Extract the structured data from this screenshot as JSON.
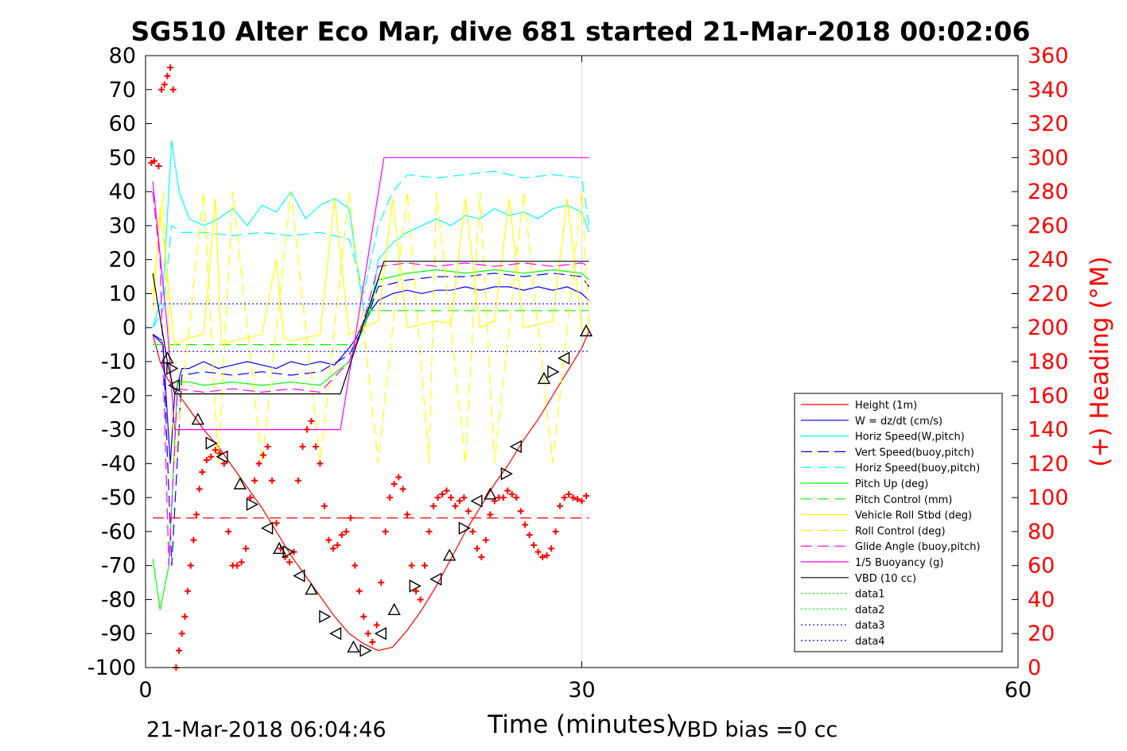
{
  "chart_data": {
    "type": "line",
    "title": "SG510 Alter Eco Mar, dive 681 started 21-Mar-2018 00:02:06",
    "xlabel": "Time (minutes)",
    "ylabel": "",
    "y2label": "(+) Heading (°M)",
    "xlim": [
      0,
      60
    ],
    "ylim": [
      -100,
      80
    ],
    "y2lim": [
      0,
      360
    ],
    "xticks": [
      "0",
      "30",
      "60"
    ],
    "yticks": [
      "80",
      "70",
      "60",
      "50",
      "40",
      "30",
      "20",
      "10",
      "0",
      "-10",
      "-20",
      "-30",
      "-40",
      "-50",
      "-60",
      "-70",
      "-80",
      "-90",
      "-100"
    ],
    "y2ticks": [
      "360",
      "340",
      "320",
      "300",
      "280",
      "260",
      "240",
      "220",
      "200",
      "180",
      "160",
      "140",
      "120",
      "100",
      "80",
      "60",
      "40",
      "20",
      "0"
    ],
    "grid": "vertical-minor",
    "legend_position": "lower-right",
    "colors": {
      "red": "#ff0000",
      "blue": "#0000ff",
      "cyan": "#00ffff",
      "green": "#00ff00",
      "yellow": "#ffff00",
      "magenta": "#ff00ff",
      "black": "#000000",
      "navy": "#00008b"
    },
    "series": [
      {
        "name": "Height (1m)",
        "color": "#ff0000",
        "style": "solid",
        "x": [
          0.5,
          1.0,
          1.5,
          2.0,
          3,
          4,
          5,
          6,
          7,
          8,
          9,
          10,
          11,
          12,
          13,
          14,
          15,
          16,
          17,
          18,
          19,
          20,
          21,
          22,
          23,
          24,
          25,
          26,
          27,
          28,
          29,
          30,
          30.5
        ],
        "y": [
          -2,
          -10,
          -15,
          -18,
          -24,
          -30,
          -35,
          -41,
          -47,
          -53,
          -60,
          -67,
          -73,
          -79,
          -85,
          -90,
          -93,
          -95,
          -94,
          -89,
          -83,
          -76,
          -68,
          -60,
          -53,
          -46,
          -40,
          -33,
          -27,
          -20,
          -13,
          -6,
          -1
        ]
      },
      {
        "name": "W = dz/dt (cm/s)",
        "color": "#0000ff",
        "style": "solid",
        "x": [
          0.5,
          1.2,
          1.7,
          2.0,
          2.5,
          3,
          4,
          5,
          6,
          7,
          8,
          9,
          10,
          11,
          12,
          13,
          14,
          14.5,
          15,
          16,
          17,
          18,
          19,
          20,
          21,
          22,
          23,
          24,
          25,
          26,
          27,
          28,
          29,
          30,
          30.5
        ],
        "y": [
          -2,
          -5,
          -40,
          -20,
          -12,
          -12,
          -10,
          -12,
          -11,
          -10,
          -11,
          -12,
          -10,
          -11,
          -10,
          -11,
          -6,
          -3,
          2,
          8,
          10,
          11,
          10,
          11,
          11,
          12,
          11,
          12,
          12,
          11,
          12,
          11,
          12,
          10,
          8
        ]
      },
      {
        "name": "Horiz Speed(W,pitch)",
        "color": "#00ffff",
        "style": "solid",
        "x": [
          0.5,
          1.2,
          1.8,
          2.3,
          3,
          4,
          5,
          6,
          7,
          8,
          9,
          10,
          11,
          12,
          13,
          14,
          14.5,
          15,
          15.5,
          16,
          17,
          18,
          19,
          20,
          21,
          22,
          23,
          24,
          25,
          26,
          27,
          28,
          29,
          30,
          30.5
        ],
        "y": [
          0,
          10,
          55,
          40,
          32,
          30,
          32,
          35,
          30,
          36,
          34,
          40,
          32,
          36,
          38,
          35,
          20,
          5,
          5,
          20,
          25,
          28,
          30,
          32,
          30,
          33,
          32,
          35,
          33,
          34,
          32,
          35,
          36,
          34,
          28
        ]
      },
      {
        "name": "Vert Speed(buoy,pitch)",
        "color": "#0000ff",
        "style": "dashed",
        "x": [
          0.5,
          1.2,
          1.8,
          2.5,
          4,
          6,
          8,
          10,
          12,
          14,
          15,
          16,
          18,
          20,
          22,
          24,
          26,
          28,
          30,
          30.5
        ],
        "y": [
          -2,
          -4,
          -70,
          -14,
          -13,
          -14,
          -13,
          -14,
          -13,
          -8,
          0,
          12,
          14,
          15,
          15,
          16,
          15,
          16,
          15,
          12
        ]
      },
      {
        "name": "Horiz Speed(buoy,pitch)",
        "color": "#00ffff",
        "style": "dashed",
        "x": [
          0.5,
          1.2,
          1.8,
          2.5,
          4,
          6,
          8,
          10,
          12,
          14,
          15,
          16,
          17,
          18,
          20,
          22,
          24,
          26,
          28,
          30,
          30.5
        ],
        "y": [
          0,
          5,
          30,
          28,
          28,
          27,
          28,
          27,
          28,
          26,
          10,
          30,
          40,
          45,
          44,
          45,
          46,
          44,
          45,
          44,
          30
        ]
      },
      {
        "name": "Pitch Up (deg)",
        "color": "#00ff00",
        "style": "solid",
        "x": [
          0.5,
          1.0,
          1.6,
          2.2,
          3,
          4,
          6,
          8,
          10,
          12,
          14,
          15,
          16,
          18,
          20,
          22,
          24,
          26,
          28,
          30,
          30.5
        ],
        "y": [
          -68,
          -83,
          -70,
          -16,
          -16,
          -17,
          -16,
          -17,
          -16,
          -17,
          -10,
          0,
          14,
          16,
          17,
          16,
          17,
          16,
          17,
          16,
          14
        ]
      },
      {
        "name": "Pitch Control (mm)",
        "color": "#00ff00",
        "style": "dashed",
        "x": [
          0.5,
          2.0,
          14.5,
          15.5,
          30.5
        ],
        "y": [
          -5,
          -5,
          -5,
          5,
          5
        ]
      },
      {
        "name": "Vehicle Roll Stbd (deg)",
        "color": "#ffff00",
        "style": "solid",
        "x": [
          0.5,
          1.0,
          2.0,
          3,
          4,
          4.8,
          5.2,
          6,
          8,
          9.0,
          9.5,
          10,
          12,
          13,
          14,
          15,
          16,
          17,
          18,
          19,
          20,
          21,
          22,
          23,
          24,
          25,
          26,
          27,
          28,
          29,
          30,
          30.5
        ],
        "y": [
          5,
          35,
          -5,
          -3,
          -2,
          38,
          -5,
          -4,
          -2,
          20,
          -3,
          -4,
          -2,
          38,
          -2,
          0,
          2,
          38,
          0,
          1,
          2,
          1,
          38,
          0,
          2,
          38,
          0,
          1,
          2,
          38,
          0,
          -1
        ]
      },
      {
        "name": "Roll Control (deg)",
        "color": "#ffff00",
        "style": "dashed",
        "x": [
          0.5,
          1.2,
          2.0,
          4,
          5,
          6,
          8,
          10,
          12,
          14,
          16,
          18,
          19.5,
          20,
          22,
          23,
          24,
          26,
          28,
          30,
          30.5
        ],
        "y": [
          10,
          40,
          -40,
          40,
          -40,
          40,
          -40,
          40,
          -40,
          40,
          -40,
          40,
          -40,
          40,
          -40,
          40,
          -40,
          40,
          -40,
          40,
          0
        ]
      },
      {
        "name": "Glide Angle (buoy,pitch)",
        "color": "#ff00ff",
        "style": "dashed",
        "x": [
          0.5,
          1.0,
          1.6,
          2.2,
          4,
          6,
          8,
          10,
          12,
          14,
          15,
          16,
          18,
          20,
          22,
          24,
          26,
          28,
          30,
          30.5
        ],
        "y": [
          40,
          20,
          -70,
          -18,
          -19,
          -18,
          -19,
          -18,
          -19,
          -10,
          2,
          18,
          19,
          18,
          19,
          18,
          19,
          18,
          19,
          18
        ]
      },
      {
        "name": "1/5 Buoyancy (g)",
        "color": "#ff00ff",
        "style": "solid",
        "x": [
          0.5,
          1.5,
          2.0,
          13.4,
          16.4,
          30.5
        ],
        "y": [
          43,
          0,
          -30,
          -30,
          50,
          50
        ]
      },
      {
        "name": "VBD (10 cc)",
        "color": "#000000",
        "style": "solid",
        "x": [
          0.5,
          1.5,
          2.0,
          13.4,
          16.4,
          30.5
        ],
        "y": [
          16,
          -10,
          -19.5,
          -19.5,
          19.5,
          19.5
        ]
      },
      {
        "name": "data1",
        "color": "#00ff00",
        "style": "dotted",
        "x": [],
        "y": []
      },
      {
        "name": "data2",
        "color": "#00ff00",
        "style": "dotted",
        "x": [],
        "y": []
      },
      {
        "name": "data3",
        "color": "#0000ff",
        "style": "dotted",
        "x": [
          0.5,
          30.5
        ],
        "y": [
          7,
          7
        ]
      },
      {
        "name": "data4",
        "color": "#0000ff",
        "style": "dotted",
        "x": [
          0.5,
          30.5
        ],
        "y": [
          -7,
          -7
        ]
      }
    ],
    "heading_points": {
      "x": [
        0.4,
        0.6,
        0.9,
        1.1,
        1.3,
        1.5,
        1.7,
        1.9,
        2.1,
        2.3,
        2.5,
        2.7,
        2.9,
        3.1,
        3.3,
        3.5,
        3.7,
        3.9,
        4.2,
        4.5,
        4.8,
        5.1,
        5.4,
        5.7,
        6.0,
        6.3,
        6.6,
        6.9,
        7.2,
        7.5,
        7.8,
        8.1,
        8.4,
        8.7,
        9.0,
        9.3,
        9.6,
        9.9,
        10.2,
        10.5,
        10.8,
        11.1,
        11.4,
        11.7,
        12.0,
        12.3,
        12.6,
        12.9,
        13.2,
        13.5,
        13.8,
        14.1,
        14.4,
        14.7,
        15.0,
        15.3,
        15.6,
        15.9,
        16.2,
        16.5,
        16.8,
        17.1,
        17.4,
        17.7,
        18.0,
        18.3,
        18.6,
        18.9,
        19.2,
        19.5,
        19.8,
        20.1,
        20.4,
        20.7,
        21.0,
        21.3,
        21.6,
        21.9,
        22.2,
        22.5,
        22.8,
        23.1,
        23.4,
        23.7,
        24.0,
        24.3,
        24.6,
        24.9,
        25.2,
        25.5,
        25.8,
        26.1,
        26.4,
        26.7,
        27.0,
        27.3,
        27.6,
        27.9,
        28.2,
        28.5,
        28.8,
        29.1,
        29.4,
        29.7,
        30.0,
        30.3
      ],
      "y": [
        297,
        298,
        295,
        340,
        343,
        348,
        353,
        340,
        0,
        10,
        20,
        30,
        45,
        60,
        75,
        90,
        105,
        115,
        122,
        124,
        128,
        126,
        120,
        80,
        60,
        60,
        62,
        70,
        100,
        110,
        120,
        125,
        130,
        110,
        85,
        70,
        65,
        62,
        68,
        110,
        130,
        140,
        145,
        130,
        120,
        95,
        75,
        70,
        72,
        78,
        80,
        88,
        60,
        45,
        30,
        20,
        15,
        25,
        50,
        80,
        100,
        108,
        112,
        105,
        90,
        60,
        45,
        40,
        60,
        80,
        95,
        100,
        102,
        104,
        100,
        95,
        98,
        100,
        92,
        80,
        70,
        65,
        75,
        90,
        98,
        100,
        100,
        104,
        102,
        100,
        92,
        84,
        78,
        72,
        68,
        65,
        66,
        70,
        80,
        95,
        100,
        102,
        100,
        99,
        98,
        101
      ]
    },
    "heading_ref": {
      "value": 88,
      "color": "#ff0000",
      "style": "dashed"
    },
    "marker_points": {
      "x": [
        1.5,
        1.8,
        2.0,
        3.6,
        4.5,
        5.3,
        6.5,
        7.3,
        8.4,
        9.2,
        9.8,
        10.6,
        11.4,
        12.3,
        13.1,
        14.3,
        15.1,
        16.2,
        17.1,
        18.5,
        20.0,
        20.9,
        21.9,
        22.8,
        23.7,
        24.8,
        25.5,
        27.4,
        28.0,
        28.8,
        30.3
      ],
      "y": [
        -9,
        -12,
        -17,
        -27,
        -34,
        -38,
        -46,
        -52,
        -59,
        -65,
        -66,
        -73,
        -77,
        -85,
        -90,
        -94,
        -95,
        -90,
        -83,
        -76,
        -74,
        -67,
        -59,
        -51,
        -49,
        -43,
        -35,
        -15,
        -13,
        -9,
        -1
      ]
    },
    "footer_left": "21-Mar-2018 06:04:46",
    "footer_right": "VBD bias =0 cc"
  }
}
